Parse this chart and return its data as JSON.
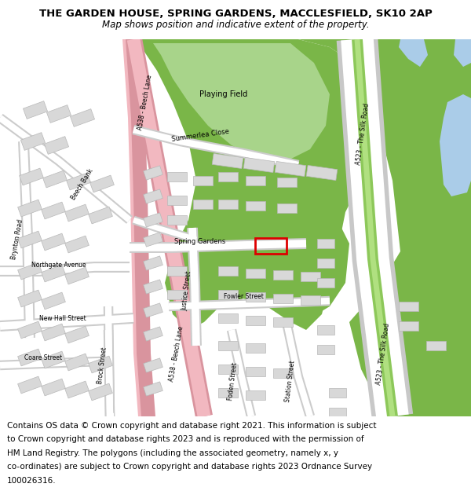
{
  "title_line1": "THE GARDEN HOUSE, SPRING GARDENS, MACCLESFIELD, SK10 2AP",
  "title_line2": "Map shows position and indicative extent of the property.",
  "footer_lines": [
    "Contains OS data © Crown copyright and database right 2021. This information is subject",
    "to Crown copyright and database rights 2023 and is reproduced with the permission of",
    "HM Land Registry. The polygons (including the associated geometry, namely x, y",
    "co-ordinates) are subject to Crown copyright and database rights 2023 Ordnance Survey",
    "100026316."
  ],
  "map_bg": "#ffffff",
  "green_main": "#7ab648",
  "green_light": "#9dc96a",
  "green_playing": "#a8d48a",
  "road_pink": "#f2b8c0",
  "road_pink_border": "#d9949e",
  "road_grey_bg": "#e8e8e8",
  "road_white": "#ffffff",
  "building_fill": "#d8d8d8",
  "building_edge": "#b8b8b8",
  "blue_water": "#aacce8",
  "red_prop": "#dd0000",
  "green_road_fill": "#8dc85a",
  "green_road_center": "#b0e080"
}
